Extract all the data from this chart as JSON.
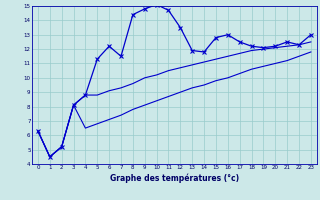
{
  "x": [
    0,
    1,
    2,
    3,
    4,
    5,
    6,
    7,
    8,
    9,
    10,
    11,
    12,
    13,
    14,
    15,
    16,
    17,
    18,
    19,
    20,
    21,
    22,
    23
  ],
  "line_main": [
    6.3,
    4.5,
    5.2,
    8.1,
    8.8,
    11.3,
    12.2,
    11.5,
    14.4,
    14.8,
    15.1,
    14.7,
    13.5,
    11.9,
    11.8,
    12.8,
    13.0,
    12.5,
    12.2,
    12.1,
    12.2,
    12.5,
    12.3,
    13.0
  ],
  "line_upper": [
    6.3,
    4.5,
    5.2,
    8.1,
    8.8,
    8.8,
    9.1,
    9.3,
    9.6,
    10.0,
    10.2,
    10.5,
    10.7,
    10.9,
    11.1,
    11.3,
    11.5,
    11.7,
    11.9,
    12.0,
    12.1,
    12.2,
    12.3,
    12.5
  ],
  "line_lower": [
    6.3,
    4.5,
    5.2,
    8.1,
    6.5,
    6.8,
    7.1,
    7.4,
    7.8,
    8.1,
    8.4,
    8.7,
    9.0,
    9.3,
    9.5,
    9.8,
    10.0,
    10.3,
    10.6,
    10.8,
    11.0,
    11.2,
    11.5,
    11.8
  ],
  "xlim": [
    -0.5,
    23.5
  ],
  "ylim": [
    4,
    15
  ],
  "yticks": [
    4,
    5,
    6,
    7,
    8,
    9,
    10,
    11,
    12,
    13,
    14,
    15
  ],
  "xticks": [
    0,
    1,
    2,
    3,
    4,
    5,
    6,
    7,
    8,
    9,
    10,
    11,
    12,
    13,
    14,
    15,
    16,
    17,
    18,
    19,
    20,
    21,
    22,
    23
  ],
  "xlabel": "Graphe des températures (°c)",
  "line_color": "#0000cc",
  "bg_color": "#cce8e8",
  "grid_color": "#99cccc",
  "axis_color": "#0000aa",
  "tick_color": "#000066"
}
